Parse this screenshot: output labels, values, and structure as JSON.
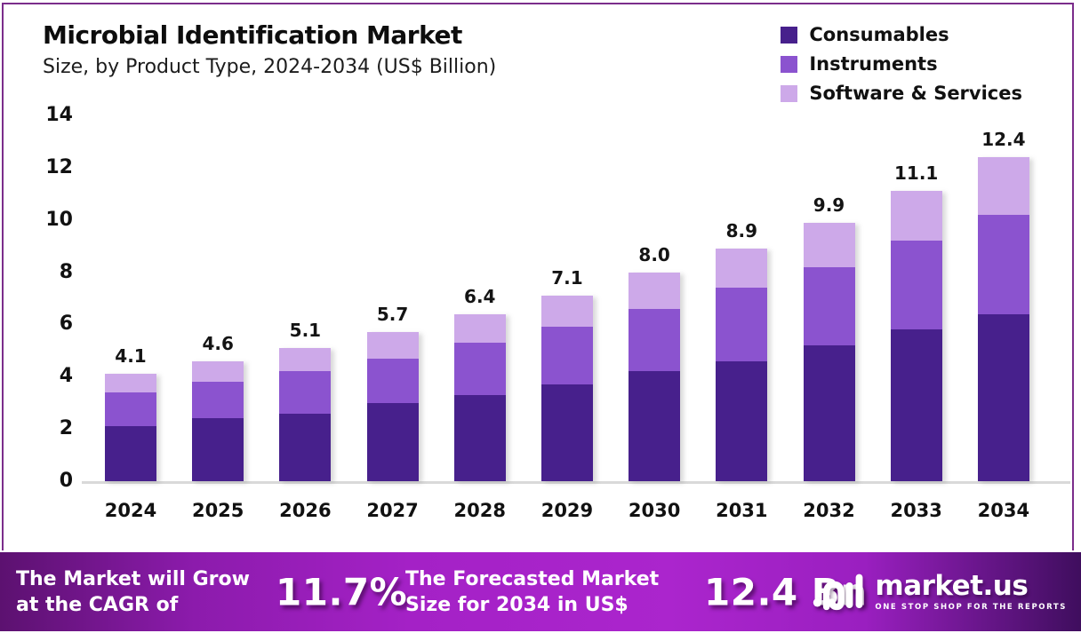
{
  "header": {
    "title": "Microbial Identification Market",
    "subtitle": "Size, by Product Type, 2024-2034 (US$ Billion)"
  },
  "chart_data": {
    "type": "bar",
    "stacked": true,
    "title": "Microbial Identification Market Size, by Product Type, 2024-2034 (US$ Billion)",
    "xlabel": "",
    "ylabel": "US$ Billion",
    "ylim": [
      0,
      14
    ],
    "yticks": [
      0,
      2,
      4,
      6,
      8,
      10,
      12,
      14
    ],
    "grid": false,
    "legend_position": "top-right",
    "categories": [
      "2024",
      "2025",
      "2026",
      "2027",
      "2028",
      "2029",
      "2030",
      "2031",
      "2032",
      "2033",
      "2034"
    ],
    "series": [
      {
        "name": "Consumables",
        "color": "#47208c",
        "values": [
          2.1,
          2.4,
          2.6,
          3.0,
          3.3,
          3.7,
          4.2,
          4.6,
          5.2,
          5.8,
          6.4
        ]
      },
      {
        "name": "Instruments",
        "color": "#8b53cf",
        "values": [
          1.3,
          1.4,
          1.6,
          1.7,
          2.0,
          2.2,
          2.4,
          2.8,
          3.0,
          3.4,
          3.8
        ]
      },
      {
        "name": "Software & Services",
        "color": "#cda9e9",
        "values": [
          0.7,
          0.8,
          0.9,
          1.0,
          1.1,
          1.2,
          1.4,
          1.5,
          1.7,
          1.9,
          2.2
        ]
      }
    ],
    "totals": [
      4.1,
      4.6,
      5.1,
      5.7,
      6.4,
      7.1,
      8.0,
      8.9,
      9.9,
      11.1,
      12.4
    ],
    "total_labels": [
      "4.1",
      "4.6",
      "5.1",
      "5.7",
      "6.4",
      "7.1",
      "8.0",
      "8.9",
      "9.9",
      "11.1",
      "12.4"
    ]
  },
  "footer": {
    "cagr_label": "The Market will Grow at the CAGR of",
    "cagr_value": "11.7%",
    "forecast_label": "The Forecasted Market Size for 2034 in US$",
    "forecast_value": "12.4 Bn",
    "brand": {
      "name": "market.us",
      "tagline": "ONE STOP SHOP FOR THE REPORTS"
    }
  },
  "colors": {
    "card_border": "#7b2d8b",
    "consumables": "#47208c",
    "instruments": "#8b53cf",
    "software_services": "#cda9e9",
    "footer_gradient_left": "#5c1170",
    "footer_gradient_center": "#ab25cd",
    "footer_gradient_right": "#3f0e5e",
    "axis_line": "#d9d9d9",
    "text": "#111111"
  }
}
